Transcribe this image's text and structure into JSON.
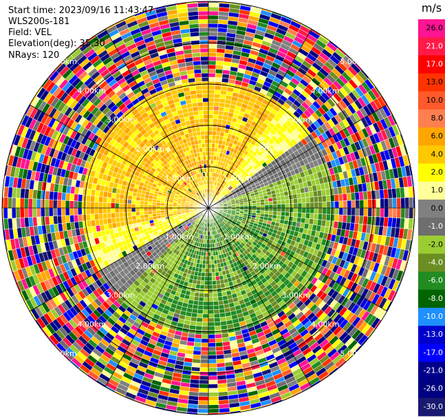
{
  "meta": {
    "start_time": "Start time: 2023/09/16 11:43:47",
    "instrument": "WLS200s-181",
    "field": "Field: VEL",
    "elevation": "Elevation(deg): 35.30",
    "nrays": "NRays: 120"
  },
  "chart_data": {
    "type": "heatmap",
    "projection": "polar-ppi",
    "field": "VEL",
    "nrays": 120,
    "range_rings_km": [
      1.0,
      2.0,
      3.0,
      4.0,
      5.0
    ],
    "ring_labels": [
      "1.00km",
      "2.00km",
      "3.00km",
      "4.00km",
      "5.00km"
    ],
    "colorbar": {
      "unit": "m/s",
      "ticks": [
        "26.0",
        "21.0",
        "17.0",
        "13.0",
        "10.0",
        "8.0",
        "6.0",
        "4.0",
        "2.0",
        "1.0",
        "0.0",
        "-1.0",
        "-2.0",
        "-4.0",
        "-6.0",
        "-8.0",
        "-10.0",
        "-13.0",
        "-17.0",
        "-21.0",
        "-26.0",
        "-30.0"
      ],
      "colors": [
        "#ff1493",
        "#ff1a4a",
        "#ff0000",
        "#ff3300",
        "#ff5a2a",
        "#ff7f50",
        "#ffa500",
        "#ffc800",
        "#ffff00",
        "#ffff99",
        "#808080",
        "#6e6e6e",
        "#9acd32",
        "#6b8e23",
        "#228b22",
        "#006400",
        "#1e90ff",
        "#0000cd",
        "#0000ff",
        "#00008b",
        "#000080",
        "#191970"
      ]
    },
    "velocity_pattern": {
      "description_values_ms": {
        "upwind_sector": "2.0 to 6.0",
        "downwind_sector": "-1.0 to -6.0"
      },
      "reliable_range_km": 3.0
    }
  }
}
